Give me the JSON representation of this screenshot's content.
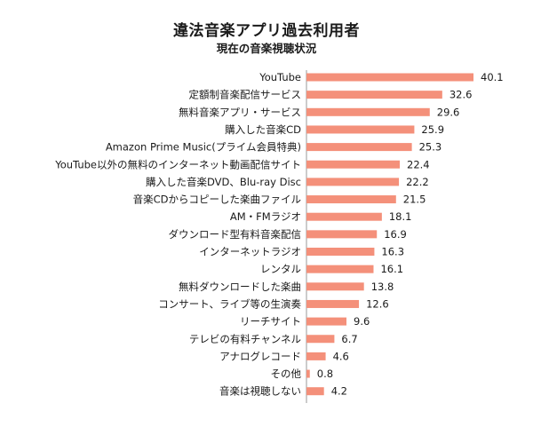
{
  "chart_data": {
    "type": "bar",
    "orientation": "horizontal",
    "title": "違法音楽アプリ過去利用者",
    "subtitle": "現在の音楽視聴状況",
    "categories": [
      "YouTube",
      "定額制音楽配信サービス",
      "無料音楽アプリ・サービス",
      "購入した音楽CD",
      "Amazon Prime Music(プライム会員特典)",
      "YouTube以外の無料のインターネット動画配信サイト",
      "購入した音楽DVD、Blu-ray Disc",
      "音楽CDからコピーした楽曲ファイル",
      "AM・FMラジオ",
      "ダウンロード型有料音楽配信",
      "インターネットラジオ",
      "レンタル",
      "無料ダウンロードした楽曲",
      "コンサート、ライブ等の生演奏",
      "リーチサイト",
      "テレビの有料チャンネル",
      "アナログレコード",
      "その他",
      "音楽は視聴しない"
    ],
    "values": [
      40.1,
      32.6,
      29.6,
      25.9,
      25.3,
      22.4,
      22.2,
      21.5,
      18.1,
      16.9,
      16.3,
      16.1,
      13.8,
      12.6,
      9.6,
      6.7,
      4.6,
      0.8,
      4.2
    ],
    "value_labels": [
      "40.1",
      "32.6",
      "29.6",
      "25.9",
      "25.3",
      "22.4",
      "22.2",
      "21.5",
      "18.1",
      "16.9",
      "16.3",
      "16.1",
      "13.8",
      "12.6",
      "9.6",
      "6.7",
      "4.6",
      "0.8",
      "4.2"
    ],
    "xlim": [
      0,
      40.1
    ],
    "grid": false,
    "legend": "none",
    "bar_color": "#f4907a",
    "axis_color": "#9a9a9a"
  }
}
